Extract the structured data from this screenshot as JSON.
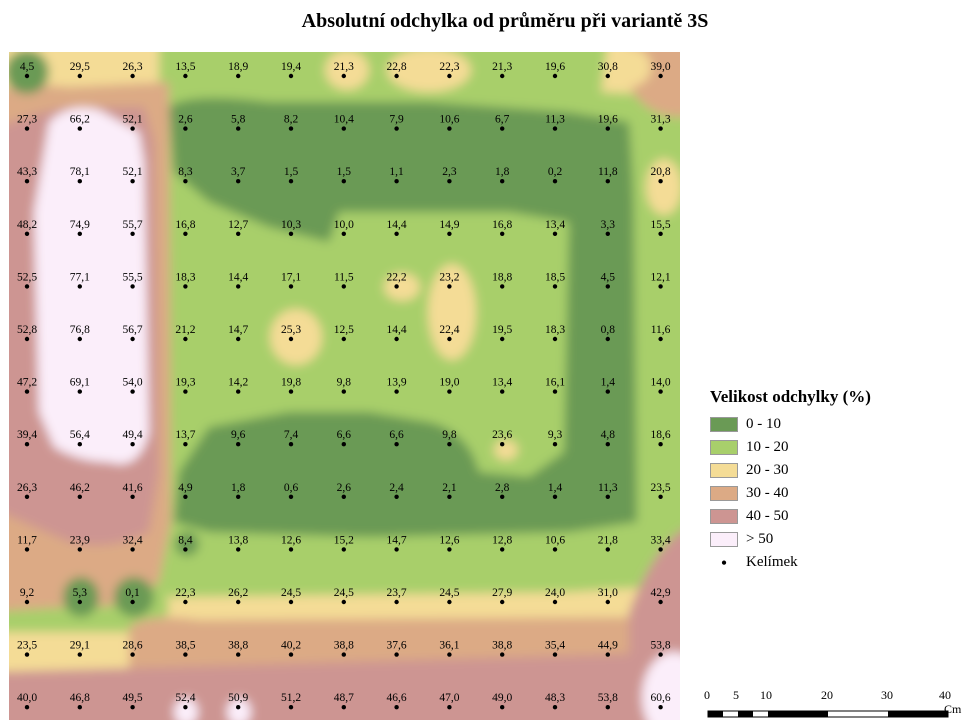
{
  "title": "Absolutní odchylka od průměru při variantě 3S",
  "legend": {
    "title": "Velikost odchylky (%)",
    "classes": [
      {
        "label": "0 - 10",
        "color": "#6a9a55"
      },
      {
        "label": "10 - 20",
        "color": "#a8cf6b"
      },
      {
        "label": "20 - 30",
        "color": "#f4dc96"
      },
      {
        "label": "30 - 40",
        "color": "#dcaa85"
      },
      {
        "label": "40 - 50",
        "color": "#cd9592"
      },
      {
        "label": "> 50",
        "color": "#fbeefa"
      }
    ],
    "point_label": "Kelímek"
  },
  "scale": {
    "labels": [
      "0",
      "5",
      "10",
      "20",
      "30",
      "40"
    ],
    "unit": "Cm"
  },
  "grid_values": [
    [
      "4,5",
      "29,5",
      "26,3",
      "13,5",
      "18,9",
      "19,4",
      "21,3",
      "22,8",
      "22,3",
      "21,3",
      "19,6",
      "30,8",
      "39,0"
    ],
    [
      "27,3",
      "66,2",
      "52,1",
      "2,6",
      "5,8",
      "8,2",
      "10,4",
      "7,9",
      "10,6",
      "6,7",
      "11,3",
      "19,6",
      "31,3"
    ],
    [
      "43,3",
      "78,1",
      "52,1",
      "8,3",
      "3,7",
      "1,5",
      "1,5",
      "1,1",
      "2,3",
      "1,8",
      "0,2",
      "11,8",
      "20,8"
    ],
    [
      "48,2",
      "74,9",
      "55,7",
      "16,8",
      "12,7",
      "10,3",
      "10,0",
      "14,4",
      "14,9",
      "16,8",
      "13,4",
      "3,3",
      "15,5"
    ],
    [
      "52,5",
      "77,1",
      "55,5",
      "18,3",
      "14,4",
      "17,1",
      "11,5",
      "22,2",
      "23,2",
      "18,8",
      "18,5",
      "4,5",
      "12,1"
    ],
    [
      "52,8",
      "76,8",
      "56,7",
      "21,2",
      "14,7",
      "25,3",
      "12,5",
      "14,4",
      "22,4",
      "19,5",
      "18,3",
      "0,8",
      "11,6"
    ],
    [
      "47,2",
      "69,1",
      "54,0",
      "19,3",
      "14,2",
      "19,8",
      "9,8",
      "13,9",
      "19,0",
      "13,4",
      "16,1",
      "1,4",
      "14,0"
    ],
    [
      "39,4",
      "56,4",
      "49,4",
      "13,7",
      "9,6",
      "7,4",
      "6,6",
      "6,6",
      "9,8",
      "23,6",
      "9,3",
      "4,8",
      "18,6"
    ],
    [
      "26,3",
      "46,2",
      "41,6",
      "4,9",
      "1,8",
      "0,6",
      "2,6",
      "2,4",
      "2,1",
      "2,8",
      "1,4",
      "11,3",
      "23,5"
    ],
    [
      "11,7",
      "23,9",
      "32,4",
      "8,4",
      "13,8",
      "12,6",
      "15,2",
      "14,7",
      "12,6",
      "12,8",
      "10,6",
      "21,8",
      "33,4"
    ],
    [
      "9,2",
      "5,3",
      "0,1",
      "22,3",
      "26,2",
      "24,5",
      "24,5",
      "23,7",
      "24,5",
      "27,9",
      "24,0",
      "31,0",
      "42,9"
    ],
    [
      "23,5",
      "29,1",
      "28,6",
      "38,5",
      "38,8",
      "40,2",
      "38,8",
      "37,6",
      "36,1",
      "38,8",
      "35,4",
      "44,9",
      "53,8"
    ],
    [
      "40,0",
      "46,8",
      "49,5",
      "52,4",
      "50,9",
      "51,2",
      "48,7",
      "46,6",
      "47,0",
      "49,0",
      "48,3",
      "53,8",
      "60,6"
    ]
  ]
}
